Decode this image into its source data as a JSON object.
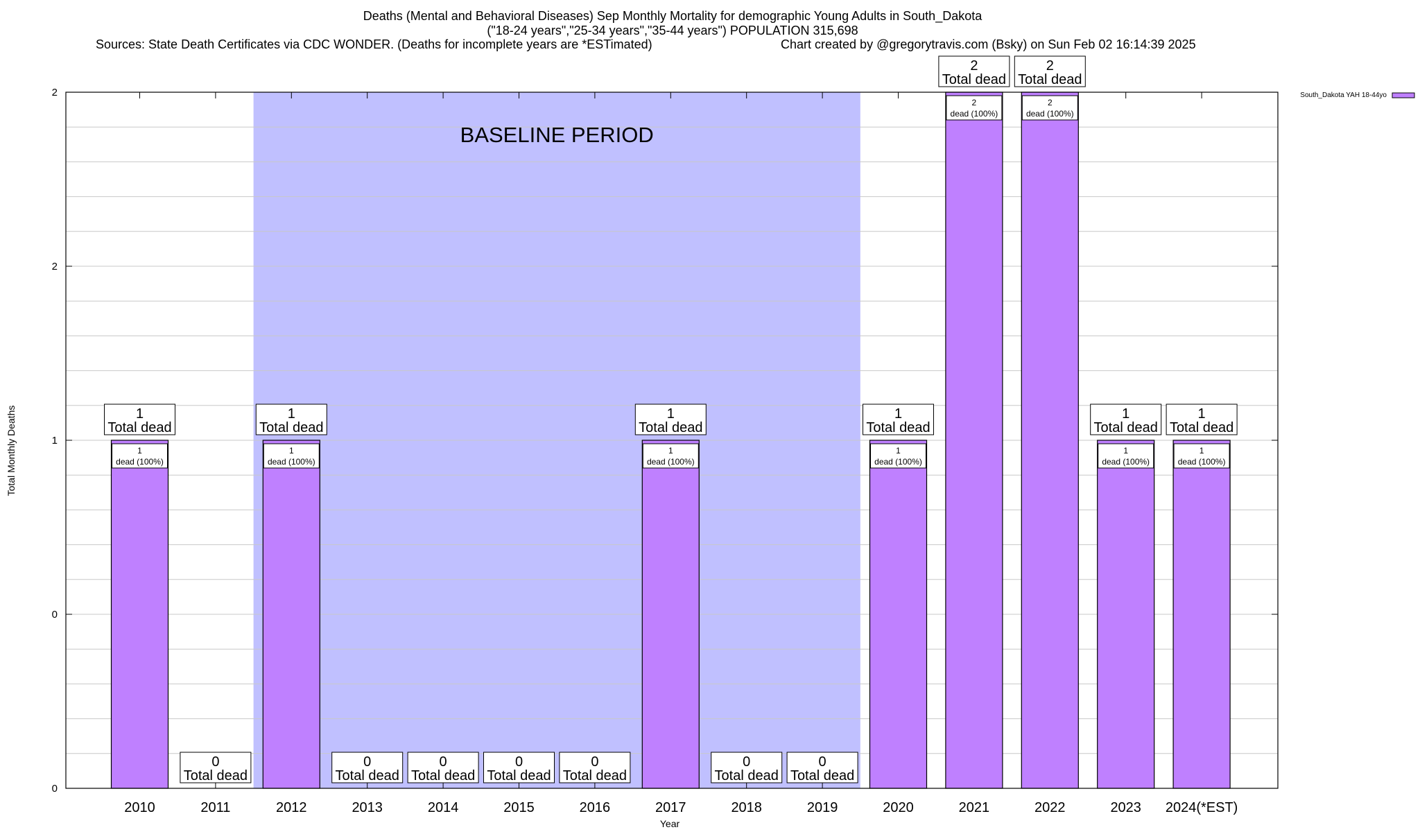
{
  "chart_data": {
    "type": "bar",
    "title": "Deaths (Mental and Behavioral Diseases) Sep Monthly Mortality for demographic Young Adults in South_Dakota",
    "subtitle": "(\"18-24 years\",\"25-34 years\",\"35-44 years\") POPULATION 315,698",
    "sources": "Sources: State Death Certificates via CDC WONDER. (Deaths for incomplete years are *ESTimated)",
    "credit": "Chart created by @gregorytravis.com (Bsky) on Sun Feb 02 16:14:39 2025",
    "xlabel": "Year",
    "ylabel": "Total Monthly Deaths",
    "categories": [
      "2010",
      "2011",
      "2012",
      "2013",
      "2014",
      "2015",
      "2016",
      "2017",
      "2018",
      "2019",
      "2020",
      "2021",
      "2022",
      "2023",
      "2024(*EST)"
    ],
    "series": [
      {
        "name": "South_Dakota YAH 18-44yo",
        "color": "#bf80ff",
        "values": [
          1,
          0,
          1,
          0,
          0,
          0,
          0,
          1,
          0,
          0,
          1,
          2,
          2,
          1,
          1
        ]
      }
    ],
    "total_labels": {
      "suffix": "Total dead",
      "values": [
        "1",
        "0",
        "1",
        "0",
        "0",
        "0",
        "0",
        "1",
        "0",
        "0",
        "1",
        "2",
        "2",
        "1",
        "1"
      ]
    },
    "bar_labels": {
      "suffix": "dead (100%)",
      "values": [
        "1",
        "",
        "1",
        "",
        "",
        "",
        "",
        "1",
        "",
        "",
        "1",
        "2",
        "2",
        "1",
        "1"
      ]
    },
    "ylim": [
      0,
      2
    ],
    "y_ticks": [
      {
        "value": 0,
        "label": "0"
      },
      {
        "value": 0.5,
        "label": "0"
      },
      {
        "value": 1,
        "label": "1"
      },
      {
        "value": 1.5,
        "label": "2"
      },
      {
        "value": 2,
        "label": "2"
      }
    ],
    "baseline": {
      "label": "BASELINE PERIOD",
      "from": "2012",
      "to": "2019",
      "color": "#c0c0ff"
    },
    "grid": true,
    "legend_position": "top-right"
  }
}
